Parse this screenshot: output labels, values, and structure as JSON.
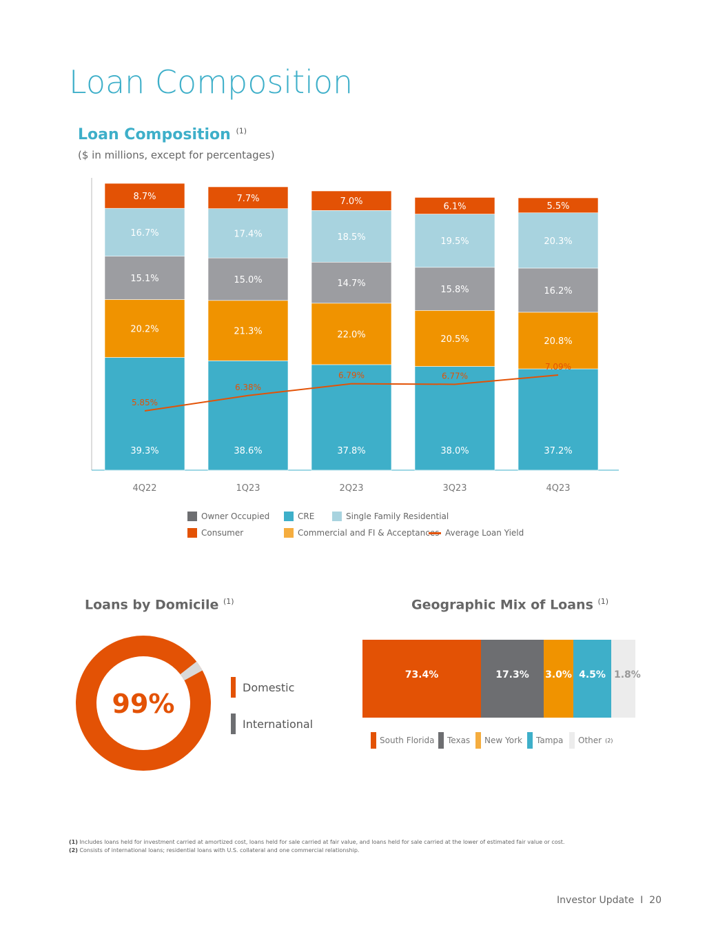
{
  "page_title": "Loan Composition",
  "chart_data": [
    {
      "type": "bar",
      "stacked": true,
      "title": "Loan Composition",
      "title_note": "(1)",
      "subtitle": "($ in millions, except for percentages)",
      "categories": [
        "4Q22",
        "1Q23",
        "2Q23",
        "3Q23",
        "4Q23"
      ],
      "series": [
        {
          "name": "CRE",
          "color": "#3eafc9",
          "values": [
            39.3,
            38.6,
            37.8,
            38.0,
            37.2
          ]
        },
        {
          "name": "Commercial and FI & Acceptances",
          "color": "#f09300",
          "values": [
            20.2,
            21.3,
            22.0,
            20.5,
            20.8
          ]
        },
        {
          "name": "Owner Occupied",
          "color": "#9c9da1",
          "values": [
            15.1,
            15.0,
            14.7,
            15.8,
            16.2
          ]
        },
        {
          "name": "Single Family Residential",
          "color": "#a8d3df",
          "values": [
            16.7,
            17.4,
            18.5,
            19.5,
            20.3
          ]
        },
        {
          "name": "Consumer",
          "color": "#e35205",
          "values": [
            8.7,
            7.7,
            7.0,
            6.1,
            5.5
          ]
        }
      ],
      "line": {
        "name": "Average Loan Yield",
        "color": "#e35205",
        "values": [
          5.85,
          6.38,
          6.79,
          6.77,
          7.09
        ]
      },
      "legend": [
        {
          "name": "Owner Occupied",
          "color": "#6d6e71"
        },
        {
          "name": "CRE",
          "color": "#3eafc9"
        },
        {
          "name": "Single Family Residential",
          "color": "#a8d3df"
        },
        {
          "name": "Consumer",
          "color": "#e35205"
        },
        {
          "name": "Commercial and FI & Acceptances",
          "color": "#f5ad3f"
        },
        {
          "name": "Average Loan Yield",
          "color": "#e35205"
        }
      ],
      "legend_position": "bottom"
    },
    {
      "type": "pie",
      "title": "Loans by Domicile",
      "title_note": "(1)",
      "center_label": "99%",
      "slices": [
        {
          "name": "Domestic",
          "value": 99,
          "color": "#e35205"
        },
        {
          "name": "International",
          "value": 1,
          "color": "#d9d9d9"
        }
      ],
      "legend": [
        {
          "name": "Domestic",
          "color": "#e35205"
        },
        {
          "name": "International",
          "color": "#6d6e71"
        }
      ]
    },
    {
      "type": "bar",
      "stacked": true,
      "orientation": "horizontal",
      "title": "Geographic Mix of Loans",
      "title_note": "(1)",
      "series": [
        {
          "name": "South Florida",
          "value": 73.4,
          "label": "73.4%",
          "color": "#e35205"
        },
        {
          "name": "Texas",
          "value": 17.3,
          "label": "17.3%",
          "color": "#6d6e71"
        },
        {
          "name": "New York",
          "value": 3.0,
          "label": "3.0%",
          "color": "#f09300"
        },
        {
          "name": "Tampa",
          "value": 4.5,
          "label": "4.5%",
          "color": "#3eafc9"
        },
        {
          "name": "Other",
          "value": 1.8,
          "label": "1.8%",
          "color": "#ececec",
          "note": "(2)"
        }
      ]
    }
  ],
  "footnotes": [
    {
      "num": "(1)",
      "text": "Includes loans held for investment carried at amortized cost, loans held for sale carried at fair value, and loans held for sale carried at the lower of estimated fair value or cost."
    },
    {
      "num": "(2)",
      "text": "Consists of international loans; residential loans with U.S. collateral and one commercial relationship."
    }
  ],
  "footer": {
    "text": "Investor Update",
    "separator": "I",
    "page": "20"
  }
}
